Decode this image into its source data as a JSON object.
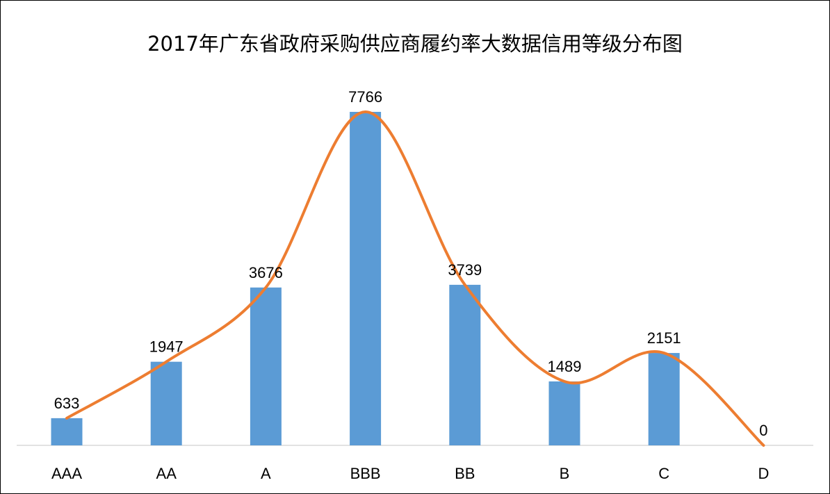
{
  "chart_data": {
    "type": "bar",
    "title": "2017年广东省政府采购供应商履约率大数据信用等级分布图",
    "categories": [
      "AAA",
      "AA",
      "A",
      "BBB",
      "BB",
      "B",
      "C",
      "D"
    ],
    "values": [
      633,
      1947,
      3676,
      7766,
      3739,
      1489,
      2151,
      0
    ],
    "xlabel": "",
    "ylabel": "",
    "ylim": [
      0,
      8000
    ],
    "grid": false,
    "legend": "none",
    "overlay": "smoothed line through bar tops",
    "colors": {
      "bar": "#5b9bd5",
      "line": "#ed7d31",
      "axis": "#d9d9d9"
    }
  }
}
